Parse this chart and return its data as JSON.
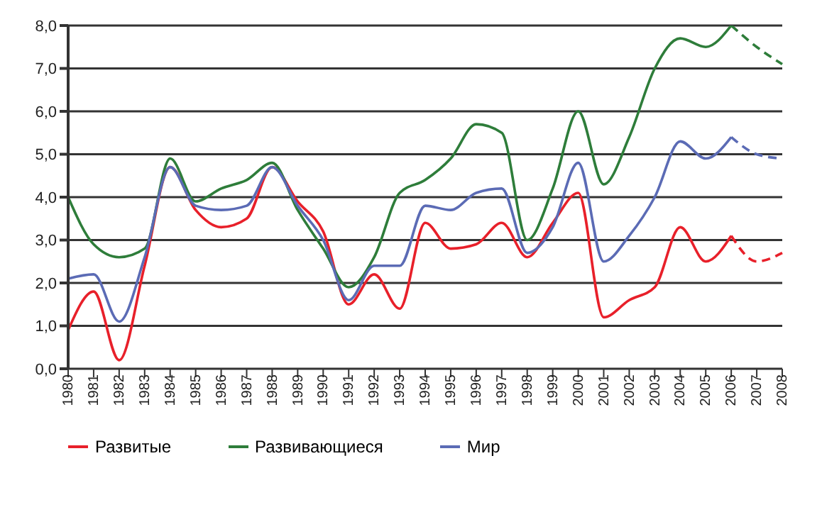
{
  "chart_data": {
    "type": "line",
    "categories": [
      "1980",
      "1981",
      "1982",
      "1983",
      "1984",
      "1985",
      "1986",
      "1987",
      "1988",
      "1989",
      "1990",
      "1991",
      "1992",
      "1993",
      "1994",
      "1995",
      "1996",
      "1997",
      "1998",
      "1999",
      "2000",
      "2001",
      "2002",
      "2003",
      "2004",
      "2005",
      "2006",
      "2007",
      "2008"
    ],
    "series": [
      {
        "name": "Развитые",
        "color": "#e8202a",
        "values": [
          0.9,
          1.8,
          0.2,
          2.4,
          4.7,
          3.7,
          3.3,
          3.5,
          4.7,
          3.9,
          3.2,
          1.5,
          2.2,
          1.4,
          3.4,
          2.8,
          2.9,
          3.4,
          2.6,
          3.4,
          4.1,
          1.2,
          1.6,
          1.9,
          3.3,
          2.5,
          3.1,
          null,
          null
        ]
      },
      {
        "name": "Развивающиеся",
        "color": "#2e7d3a",
        "values": [
          4.0,
          2.9,
          2.6,
          2.8,
          4.9,
          3.9,
          4.2,
          4.4,
          4.8,
          3.7,
          2.8,
          1.9,
          2.6,
          4.1,
          4.4,
          4.9,
          5.7,
          5.5,
          3.0,
          4.2,
          6.0,
          4.3,
          5.4,
          7.0,
          7.7,
          7.5,
          8.0,
          null,
          null
        ]
      },
      {
        "name": "Мир",
        "color": "#5b6bb5",
        "values": [
          2.1,
          2.2,
          1.1,
          2.6,
          4.7,
          3.8,
          3.7,
          3.8,
          4.7,
          3.8,
          3.0,
          1.6,
          2.4,
          2.4,
          3.8,
          3.7,
          4.1,
          4.2,
          2.7,
          3.3,
          4.8,
          2.5,
          3.1,
          4.0,
          5.3,
          4.9,
          5.4,
          null,
          null
        ]
      },
      {
        "color": "#e8202a",
        "line_style": "dashed",
        "values": [
          null,
          null,
          null,
          null,
          null,
          null,
          null,
          null,
          null,
          null,
          null,
          null,
          null,
          null,
          null,
          null,
          null,
          null,
          null,
          null,
          null,
          null,
          null,
          null,
          null,
          null,
          3.1,
          2.5,
          2.7
        ]
      },
      {
        "color": "#2e7d3a",
        "line_style": "dashed",
        "values": [
          null,
          null,
          null,
          null,
          null,
          null,
          null,
          null,
          null,
          null,
          null,
          null,
          null,
          null,
          null,
          null,
          null,
          null,
          null,
          null,
          null,
          null,
          null,
          null,
          null,
          null,
          8.0,
          7.5,
          7.1
        ]
      },
      {
        "color": "#5b6bb5",
        "line_style": "dashed",
        "values": [
          null,
          null,
          null,
          null,
          null,
          null,
          null,
          null,
          null,
          null,
          null,
          null,
          null,
          null,
          null,
          null,
          null,
          null,
          null,
          null,
          null,
          null,
          null,
          null,
          null,
          null,
          5.4,
          5.0,
          4.9
        ]
      }
    ],
    "ylim": [
      0,
      8
    ],
    "yticks": [
      {
        "value": 0,
        "label": "0,0"
      },
      {
        "value": 1,
        "label": "1,0"
      },
      {
        "value": 2,
        "label": "2,0"
      },
      {
        "value": 3,
        "label": "3,0"
      },
      {
        "value": 4,
        "label": "4,0"
      },
      {
        "value": 5,
        "label": "5,0"
      },
      {
        "value": 6,
        "label": "6,0"
      },
      {
        "value": 7,
        "label": "7,0"
      },
      {
        "value": 8,
        "label": "8,0"
      }
    ],
    "grid": "y",
    "legend": "bottom",
    "marker": "none",
    "line_style": "solid"
  }
}
